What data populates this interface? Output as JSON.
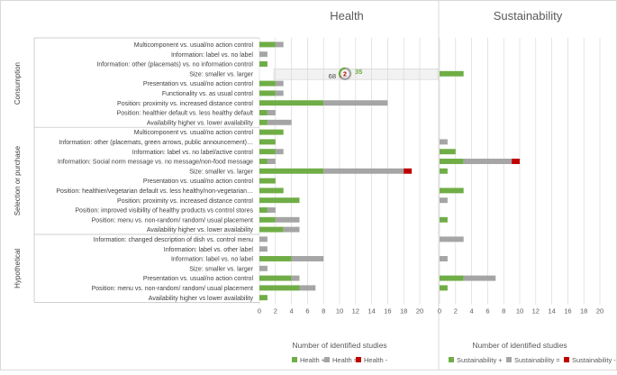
{
  "chart_data": {
    "type": "bar",
    "orientation": "horizontal",
    "stacked": true,
    "panels": [
      {
        "title": "Health",
        "xlabel": "Number of identified studies",
        "xlim": [
          0,
          20
        ],
        "xticks": [
          0,
          2,
          4,
          6,
          8,
          10,
          12,
          14,
          16,
          18,
          20
        ]
      },
      {
        "title": "Sustainability",
        "xlabel": "Number of identified studies",
        "xlim": [
          0,
          20
        ],
        "xticks": [
          0,
          2,
          4,
          6,
          8,
          10,
          12,
          14,
          16,
          18,
          20
        ]
      }
    ],
    "groups": [
      {
        "name": "Consumption",
        "rows": [
          0,
          8
        ]
      },
      {
        "name": "Selection or purchase",
        "rows": [
          9,
          19
        ]
      },
      {
        "name": "Hypothetical",
        "rows": [
          20,
          26
        ]
      }
    ],
    "categories": [
      "Multicomponent vs. usual/no action control",
      "Information: label vs. no label",
      "Information: other (placemats) vs. no information control",
      "Size: smaller vs. larger",
      "Presentation vs. usual/no action control",
      "Functionality vs. as usual control",
      "Position: proximity vs. increased distance control",
      "Position: healthier default vs. less healthy default",
      "Availability higher vs. lower availability",
      "Multicomponent vs. usual/no action control",
      "Information: other (placemats, green arrows, public announcement)…",
      "Information: label vs. no label/active control",
      "Information: Social norm message vs. no message/non-food message",
      "Size: smaller vs. larger",
      "Presentation vs. usual/no action control",
      "Position: healthier/vegetarian default vs. less healthy/non-vegetarian…",
      "Position: proximity vs. increased distance control",
      "Position: improved visibility of healthy products vs control stores",
      "Position: menu vs. non-random/ random/ usual placement",
      "Availability higher vs. lower availability",
      "Information: changed description of dish vs. control menu",
      "Information: label vs. other label",
      "Information: label vs. no label",
      "Size: smaller vs. larger",
      "Presentation vs. usual/no action control",
      "Position: menu vs. non-random/ random/ usual placement",
      "Availability higher vs lower availability"
    ],
    "series": [
      {
        "name": "Health +",
        "panel": 0,
        "color": "#70ad47",
        "values": [
          2,
          0,
          1,
          0,
          2,
          2,
          8,
          1,
          1,
          3,
          2,
          2,
          1,
          8,
          2,
          3,
          5,
          1,
          2,
          3,
          0,
          0,
          4,
          0,
          4,
          5,
          1
        ]
      },
      {
        "name": "Health =",
        "panel": 0,
        "color": "#a5a5a5",
        "values": [
          1,
          1,
          0,
          0,
          1,
          1,
          8,
          1,
          3,
          0,
          0,
          1,
          1,
          10,
          0,
          0,
          0,
          1,
          3,
          2,
          1,
          1,
          4,
          1,
          1,
          2,
          0
        ]
      },
      {
        "name": "Health -",
        "panel": 0,
        "color": "#c00000",
        "values": [
          0,
          0,
          0,
          0,
          0,
          0,
          0,
          0,
          0,
          0,
          0,
          0,
          0,
          1,
          0,
          0,
          0,
          0,
          0,
          0,
          0,
          0,
          0,
          0,
          0,
          0,
          0
        ]
      },
      {
        "name": "Sustainability +",
        "panel": 1,
        "color": "#70ad47",
        "values": [
          0,
          0,
          0,
          3,
          0,
          0,
          0,
          0,
          0,
          0,
          0,
          2,
          3,
          1,
          0,
          3,
          0,
          0,
          1,
          0,
          0,
          0,
          0,
          0,
          3,
          1,
          0
        ]
      },
      {
        "name": "Sustainability =",
        "panel": 1,
        "color": "#a5a5a5",
        "values": [
          0,
          0,
          0,
          0,
          0,
          0,
          0,
          0,
          0,
          0,
          1,
          0,
          6,
          0,
          0,
          0,
          1,
          0,
          0,
          0,
          3,
          0,
          1,
          0,
          4,
          0,
          0
        ]
      },
      {
        "name": "Sustainability -",
        "panel": 1,
        "color": "#c00000",
        "values": [
          0,
          0,
          0,
          0,
          0,
          0,
          0,
          0,
          0,
          0,
          0,
          0,
          1,
          0,
          0,
          0,
          0,
          0,
          0,
          0,
          0,
          0,
          0,
          0,
          0,
          0,
          0
        ]
      }
    ],
    "highlight_row": 3,
    "donut_badge": {
      "values": [
        68,
        2,
        35
      ],
      "center_label": "2",
      "left_label": "68",
      "right_label": "35",
      "colors": [
        "#a5a5a5",
        "#c00000",
        "#70ad47"
      ]
    },
    "legend": {
      "position": "bottom"
    },
    "grid": true
  }
}
